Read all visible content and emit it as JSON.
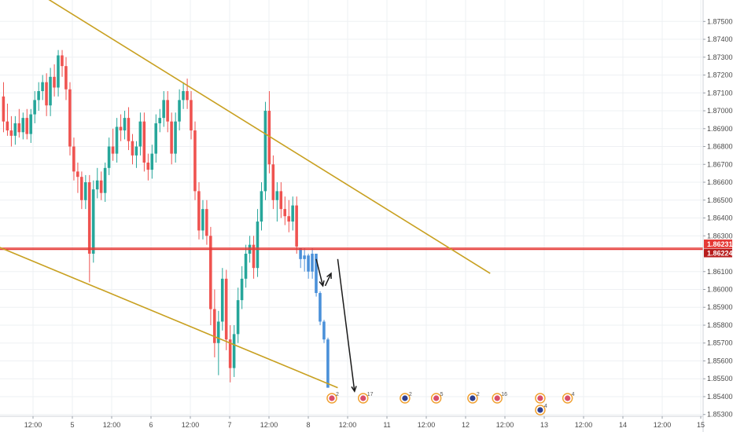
{
  "chart_data": {
    "type": "candlestick",
    "x_tick_labels": [
      "12:00",
      "5",
      "12:00",
      "6",
      "12:00",
      "7",
      "12:00",
      "8",
      "12:00",
      "11",
      "12:00",
      "12",
      "12:00",
      "13",
      "12:00",
      "14",
      "12:00",
      "15"
    ],
    "y_tick_labels": [
      "1.87500",
      "1.87400",
      "1.87300",
      "1.87200",
      "1.87100",
      "1.87000",
      "1.86900",
      "1.86800",
      "1.86700",
      "1.86600",
      "1.86500",
      "1.86400",
      "1.86300",
      "1.86100",
      "1.86000",
      "1.85900",
      "1.85800",
      "1.85700",
      "1.85600",
      "1.85500",
      "1.85400",
      "1.85300"
    ],
    "y_ticks": [
      1.875,
      1.874,
      1.873,
      1.872,
      1.871,
      1.87,
      1.869,
      1.868,
      1.867,
      1.866,
      1.865,
      1.864,
      1.863,
      1.861,
      1.86,
      1.859,
      1.858,
      1.857,
      1.856,
      1.855,
      1.854,
      1.853
    ],
    "ylim": [
      1.8529,
      1.8762
    ],
    "price_labels": [
      {
        "value": 1.86231,
        "text": "1.86231",
        "color": "#e53935"
      },
      {
        "value": 1.86224,
        "text": "1.86224",
        "color": "#b71c1c"
      }
    ],
    "horizontal_levels": [
      {
        "value": 1.86231,
        "color": "#e53935"
      },
      {
        "value": 1.86224,
        "color": "#e53935"
      }
    ],
    "trendlines": [
      {
        "from": {
          "bar": -1,
          "value": 1.878
        },
        "to": {
          "bar": 125,
          "value": 1.8609
        },
        "color": "#c8a020"
      },
      {
        "from": {
          "bar": -1,
          "value": 1.8624
        },
        "to": {
          "bar": 86,
          "value": 1.8545
        },
        "color": "#c8a020"
      }
    ],
    "projection_arrows": [
      {
        "from": {
          "bar": 80.5,
          "value": 1.8617
        },
        "to": {
          "bar": 82.2,
          "value": 1.8602
        },
        "color": "#1a1a1a"
      },
      {
        "from": {
          "bar": 82.8,
          "value": 1.8602
        },
        "to": {
          "bar": 84.3,
          "value": 1.8609
        },
        "color": "#1a1a1a"
      },
      {
        "from": {
          "bar": 86,
          "value": 1.8617
        },
        "to": {
          "bar": 90.3,
          "value": 1.8543
        },
        "color": "#1a1a1a"
      }
    ],
    "colors": {
      "up": "#26a69a",
      "down": "#ef5350",
      "projection": "#4a90d9",
      "grid": "#eef0f3",
      "axis_text": "#4a4a4a"
    },
    "grid": true,
    "series": [
      {
        "name": "history",
        "ohlc": [
          [
            1.8708,
            1.8716,
            1.8688,
            1.8694
          ],
          [
            1.8694,
            1.8704,
            1.8686,
            1.8689
          ],
          [
            1.8689,
            1.8697,
            1.868,
            1.8686
          ],
          [
            1.8686,
            1.8697,
            1.8681,
            1.8693
          ],
          [
            1.8693,
            1.8701,
            1.8685,
            1.8688
          ],
          [
            1.8688,
            1.8699,
            1.8684,
            1.8696
          ],
          [
            1.8696,
            1.8701,
            1.8684,
            1.8687
          ],
          [
            1.8687,
            1.8701,
            1.8682,
            1.8698
          ],
          [
            1.8698,
            1.8711,
            1.8693,
            1.8706
          ],
          [
            1.8706,
            1.8716,
            1.87,
            1.8711
          ],
          [
            1.8711,
            1.872,
            1.8706,
            1.8716
          ],
          [
            1.8716,
            1.8721,
            1.8697,
            1.8703
          ],
          [
            1.8703,
            1.8724,
            1.8697,
            1.8719
          ],
          [
            1.8719,
            1.8726,
            1.8708,
            1.8713
          ],
          [
            1.8713,
            1.8734,
            1.8708,
            1.8731
          ],
          [
            1.8731,
            1.8734,
            1.8719,
            1.8725
          ],
          [
            1.8725,
            1.873,
            1.8706,
            1.8712
          ],
          [
            1.8712,
            1.8716,
            1.8675,
            1.868
          ],
          [
            1.868,
            1.8685,
            1.8661,
            1.8666
          ],
          [
            1.8666,
            1.8671,
            1.8654,
            1.8663
          ],
          [
            1.8663,
            1.8666,
            1.8645,
            1.865
          ],
          [
            1.865,
            1.8664,
            1.8645,
            1.866
          ],
          [
            1.866,
            1.8664,
            1.8604,
            1.862
          ],
          [
            1.862,
            1.8661,
            1.8615,
            1.8656
          ],
          [
            1.8656,
            1.8668,
            1.8651,
            1.8661
          ],
          [
            1.8661,
            1.8666,
            1.865,
            1.8654
          ],
          [
            1.8654,
            1.8671,
            1.8649,
            1.8668
          ],
          [
            1.8668,
            1.8685,
            1.8664,
            1.868
          ],
          [
            1.868,
            1.869,
            1.8672,
            1.8676
          ],
          [
            1.8676,
            1.8696,
            1.8671,
            1.8691
          ],
          [
            1.8691,
            1.8698,
            1.8683,
            1.8689
          ],
          [
            1.8689,
            1.87,
            1.8684,
            1.8696
          ],
          [
            1.8696,
            1.8702,
            1.8678,
            1.8683
          ],
          [
            1.8683,
            1.8687,
            1.867,
            1.8675
          ],
          [
            1.8675,
            1.8683,
            1.8668,
            1.868
          ],
          [
            1.868,
            1.8699,
            1.8675,
            1.8694
          ],
          [
            1.8694,
            1.8699,
            1.8666,
            1.8671
          ],
          [
            1.8671,
            1.8676,
            1.8661,
            1.8667
          ],
          [
            1.8667,
            1.8681,
            1.8662,
            1.8676
          ],
          [
            1.8676,
            1.8698,
            1.8671,
            1.8693
          ],
          [
            1.8693,
            1.8701,
            1.8688,
            1.8696
          ],
          [
            1.8696,
            1.8711,
            1.8691,
            1.8706
          ],
          [
            1.8706,
            1.8711,
            1.8688,
            1.8694
          ],
          [
            1.8694,
            1.8699,
            1.867,
            1.8676
          ],
          [
            1.8676,
            1.8699,
            1.8671,
            1.8694
          ],
          [
            1.8694,
            1.8712,
            1.8689,
            1.8706
          ],
          [
            1.8706,
            1.8716,
            1.8701,
            1.8711
          ],
          [
            1.8711,
            1.8718,
            1.8701,
            1.8706
          ],
          [
            1.8706,
            1.8711,
            1.8684,
            1.8689
          ],
          [
            1.8689,
            1.8694,
            1.865,
            1.8655
          ],
          [
            1.8655,
            1.866,
            1.8628,
            1.8633
          ],
          [
            1.8633,
            1.865,
            1.8628,
            1.8645
          ],
          [
            1.8645,
            1.865,
            1.8625,
            1.863
          ],
          [
            1.863,
            1.8635,
            1.858,
            1.8589
          ],
          [
            1.8589,
            1.86,
            1.8562,
            1.857
          ],
          [
            1.857,
            1.8588,
            1.8552,
            1.8582
          ],
          [
            1.8582,
            1.8612,
            1.8577,
            1.8606
          ],
          [
            1.8606,
            1.8611,
            1.8566,
            1.8572
          ],
          [
            1.8572,
            1.858,
            1.8548,
            1.8556
          ],
          [
            1.8556,
            1.858,
            1.8551,
            1.8575
          ],
          [
            1.8575,
            1.8601,
            1.857,
            1.8594
          ],
          [
            1.8594,
            1.8613,
            1.8589,
            1.8606
          ],
          [
            1.8606,
            1.8625,
            1.8601,
            1.862
          ],
          [
            1.862,
            1.863,
            1.8615,
            1.8625
          ],
          [
            1.8625,
            1.863,
            1.8606,
            1.8612
          ],
          [
            1.8612,
            1.8645,
            1.8607,
            1.8638
          ],
          [
            1.8638,
            1.866,
            1.8633,
            1.8655
          ],
          [
            1.8655,
            1.8705,
            1.865,
            1.87
          ],
          [
            1.87,
            1.8711,
            1.8665,
            1.867
          ],
          [
            1.867,
            1.8675,
            1.8645,
            1.865
          ],
          [
            1.865,
            1.866,
            1.8638,
            1.8655
          ],
          [
            1.8655,
            1.866,
            1.864,
            1.8645
          ],
          [
            1.8645,
            1.8652,
            1.8636,
            1.8641
          ],
          [
            1.8641,
            1.865,
            1.8632,
            1.8638
          ],
          [
            1.8638,
            1.8652,
            1.8633,
            1.8647
          ],
          [
            1.8647,
            1.8652,
            1.862,
            1.8624
          ]
        ]
      },
      {
        "name": "projection",
        "start_bar": 76,
        "ohlc": [
          [
            1.8623,
            1.8623,
            1.8612,
            1.8617
          ],
          [
            1.8617,
            1.8623,
            1.861,
            1.8619
          ],
          [
            1.8619,
            1.862,
            1.8606,
            1.861
          ],
          [
            1.861,
            1.8623,
            1.8606,
            1.862
          ],
          [
            1.862,
            1.862,
            1.8596,
            1.8598
          ],
          [
            1.8598,
            1.8599,
            1.858,
            1.8582
          ],
          [
            1.8582,
            1.8583,
            1.857,
            1.8572
          ],
          [
            1.8572,
            1.8573,
            1.8545,
            1.8545
          ]
        ]
      }
    ],
    "events": [
      {
        "bar": 84.5,
        "count": "2",
        "kind": "flag-gb"
      },
      {
        "bar": 92.5,
        "count": "17",
        "kind": "flag-gb"
      },
      {
        "bar": 103.2,
        "count": "2",
        "kind": "flag-au"
      },
      {
        "bar": 111.2,
        "count": "5",
        "kind": "flag-gb"
      },
      {
        "bar": 120.5,
        "count": "2",
        "kind": "flag-au"
      },
      {
        "bar": 126.8,
        "count": "16",
        "kind": "flag-gb"
      },
      {
        "bar": 137.8,
        "count": "",
        "kind": "flag-gb"
      },
      {
        "bar": 137.8,
        "count": "4",
        "kind": "flag-au"
      },
      {
        "bar": 144.8,
        "count": "4",
        "kind": "flag-gb"
      }
    ]
  }
}
